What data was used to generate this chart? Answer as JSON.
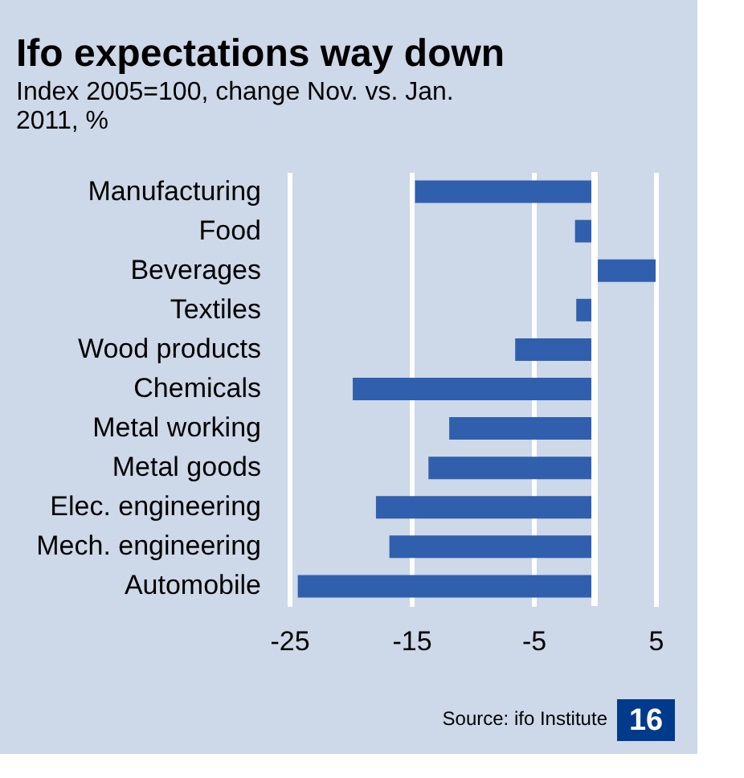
{
  "chart_data": {
    "type": "bar",
    "orientation": "horizontal",
    "title": "Ifo expectations way down",
    "subtitle": "Index 2005=100, change Nov. vs. Jan. 2011, %",
    "categories": [
      "Manufacturing",
      "Food",
      "Beverages",
      "Textiles",
      "Wood products",
      "Chemicals",
      "Metal working",
      "Metal goods",
      "Elec. engineering",
      "Mech. engineering",
      "Automobile"
    ],
    "values": [
      -14.7,
      -1.6,
      5,
      -1.5,
      -6.5,
      -19.8,
      -11.9,
      -13.6,
      -17.9,
      -16.8,
      -24.3
    ],
    "color": "#3060ad",
    "xlim": [
      -25,
      5
    ],
    "xticks": [
      -25,
      -15,
      -5,
      5
    ],
    "grid": "x",
    "ref_lines": [
      {
        "axis": "x",
        "value": 0,
        "color": "#ffffff"
      }
    ],
    "annotations": [
      "Source: ifo Institute",
      "16"
    ]
  }
}
